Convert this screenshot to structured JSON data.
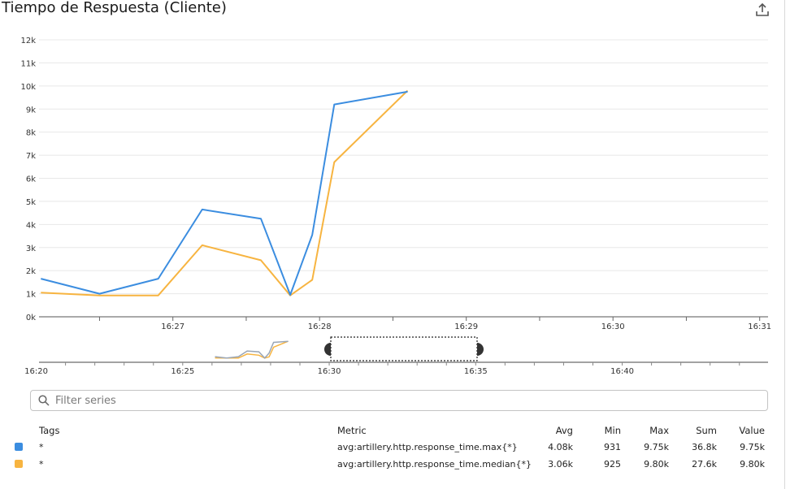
{
  "widget": {
    "title": "Tiempo de Respuesta (Cliente)",
    "share_icon": "export-icon"
  },
  "chart_data": {
    "type": "line",
    "y_ticks": [
      "0k",
      "1k",
      "2k",
      "3k",
      "4k",
      "5k",
      "6k",
      "7k",
      "8k",
      "9k",
      "10k",
      "11k",
      "12k"
    ],
    "x_ticks": [
      "16:27",
      "16:28",
      "16:29",
      "16:30",
      "16:31"
    ],
    "ylim": [
      0,
      12000
    ],
    "x_minutes_since_16_26": [
      0.1,
      0.5,
      0.9,
      1.2,
      1.6,
      1.8,
      1.95,
      2.1,
      2.6
    ],
    "series": [
      {
        "name": "avg:artillery.http.response_time.max{*}",
        "color": "#3b8de0",
        "values": [
          1650,
          1000,
          1650,
          4650,
          4250,
          950,
          3550,
          9200,
          9750
        ]
      },
      {
        "name": "avg:artillery.http.response_time.median{*}",
        "color": "#f7b440",
        "values": [
          1050,
          925,
          925,
          3100,
          2450,
          925,
          1600,
          6700,
          9800
        ]
      }
    ]
  },
  "navigator": {
    "x_ticks": [
      "16:20",
      "16:25",
      "16:30",
      "16:35",
      "16:40"
    ]
  },
  "filter": {
    "placeholder": "Filter series",
    "icon": "search-icon"
  },
  "legend": {
    "headers": {
      "tags": "Tags",
      "metric": "Metric",
      "avg": "Avg",
      "min": "Min",
      "max": "Max",
      "sum": "Sum",
      "value": "Value"
    },
    "rows": [
      {
        "color": "#3b8de0",
        "tags": "*",
        "metric": "avg:artillery.http.response_time.max{*}",
        "avg": "4.08k",
        "min": "931",
        "max": "9.75k",
        "sum": "36.8k",
        "value": "9.75k"
      },
      {
        "color": "#f7b440",
        "tags": "*",
        "metric": "avg:artillery.http.response_time.median{*}",
        "avg": "3.06k",
        "min": "925",
        "max": "9.80k",
        "sum": "27.6k",
        "value": "9.80k"
      }
    ]
  }
}
